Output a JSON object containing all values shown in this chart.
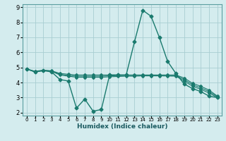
{
  "title": "",
  "xlabel": "Humidex (Indice chaleur)",
  "bg_color": "#d4ecee",
  "grid_color": "#a8cdd2",
  "line_color": "#1a7a6e",
  "xlim": [
    -0.5,
    23.5
  ],
  "ylim": [
    1.8,
    9.2
  ],
  "yticks": [
    2,
    3,
    4,
    5,
    6,
    7,
    8,
    9
  ],
  "xticks": [
    0,
    1,
    2,
    3,
    4,
    5,
    6,
    7,
    8,
    9,
    10,
    11,
    12,
    13,
    14,
    15,
    16,
    17,
    18,
    19,
    20,
    21,
    22,
    23
  ],
  "series": [
    {
      "x": [
        0,
        1,
        2,
        3,
        4,
        5,
        6,
        7,
        8,
        9,
        10,
        11,
        12,
        13,
        14,
        15,
        16,
        17,
        18,
        19,
        20,
        21,
        22,
        23
      ],
      "y": [
        4.9,
        4.7,
        4.8,
        4.7,
        4.2,
        4.1,
        2.3,
        2.9,
        2.1,
        2.2,
        4.5,
        4.5,
        4.5,
        6.7,
        8.8,
        8.4,
        7.0,
        5.4,
        4.6,
        3.9,
        3.6,
        3.4,
        3.1,
        3.0
      ]
    },
    {
      "x": [
        0,
        1,
        2,
        3,
        4,
        5,
        6,
        7,
        8,
        9,
        10,
        11,
        12,
        13,
        14,
        15,
        16,
        17,
        18,
        19,
        20,
        21,
        22,
        23
      ],
      "y": [
        4.9,
        4.75,
        4.82,
        4.78,
        4.6,
        4.55,
        4.5,
        4.5,
        4.5,
        4.5,
        4.5,
        4.5,
        4.5,
        4.5,
        4.5,
        4.5,
        4.5,
        4.5,
        4.5,
        4.3,
        3.95,
        3.75,
        3.5,
        3.1
      ]
    },
    {
      "x": [
        0,
        1,
        2,
        3,
        4,
        5,
        6,
        7,
        8,
        9,
        10,
        11,
        12,
        13,
        14,
        15,
        16,
        17,
        18,
        19,
        20,
        21,
        22,
        23
      ],
      "y": [
        4.9,
        4.72,
        4.8,
        4.76,
        4.55,
        4.48,
        4.42,
        4.42,
        4.42,
        4.42,
        4.44,
        4.46,
        4.47,
        4.47,
        4.48,
        4.48,
        4.48,
        4.47,
        4.46,
        4.2,
        3.85,
        3.65,
        3.4,
        3.05
      ]
    },
    {
      "x": [
        0,
        1,
        2,
        3,
        4,
        5,
        6,
        7,
        8,
        9,
        10,
        11,
        12,
        13,
        14,
        15,
        16,
        17,
        18,
        19,
        20,
        21,
        22,
        23
      ],
      "y": [
        4.9,
        4.7,
        4.78,
        4.74,
        4.5,
        4.42,
        4.35,
        4.35,
        4.35,
        4.35,
        4.38,
        4.4,
        4.42,
        4.42,
        4.44,
        4.44,
        4.44,
        4.43,
        4.42,
        4.1,
        3.75,
        3.55,
        3.3,
        3.0
      ]
    }
  ]
}
